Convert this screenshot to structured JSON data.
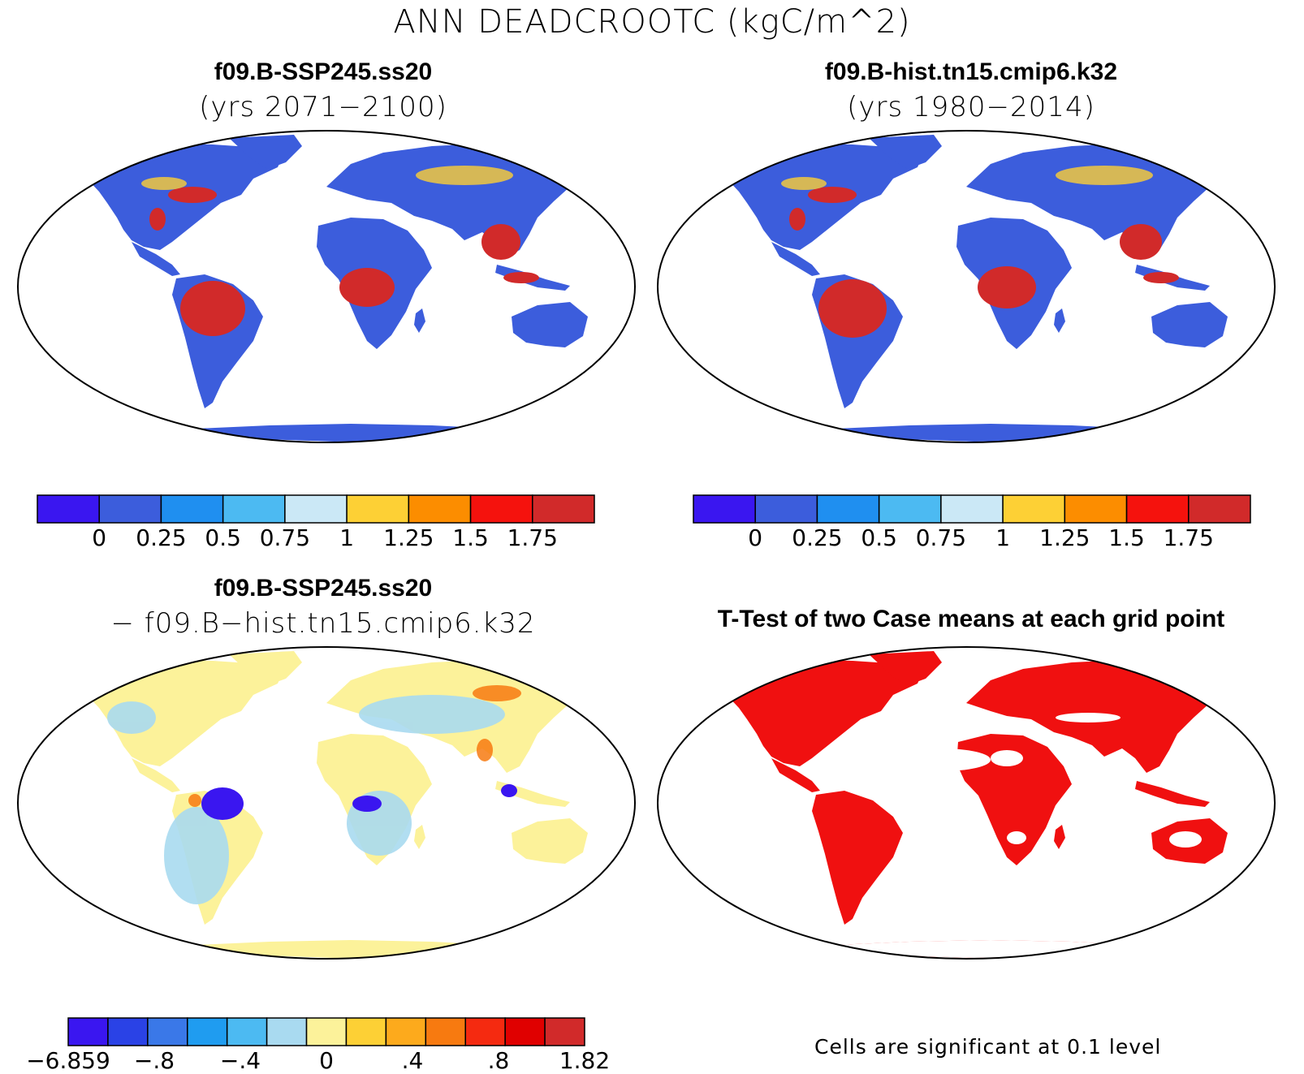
{
  "figure": {
    "title": "ANN DEADCROOTC (kgC/m^2)"
  },
  "panels": [
    {
      "title": "f09.B-SSP245.ss20",
      "subtitle": "(yrs 2071−2100)",
      "colorbar": {
        "labels": [
          "0",
          "0.25",
          "0.5",
          "0.75",
          "1",
          "1.25",
          "1.5",
          "1.75"
        ],
        "colors": [
          "#3a16f0",
          "#3c5ddc",
          "#1f8ff0",
          "#4cbaf2",
          "#cbe8f6",
          "#fdd035",
          "#fc8d00",
          "#f5120d",
          "#d12a2a"
        ]
      }
    },
    {
      "title": "f09.B-hist.tn15.cmip6.k32",
      "subtitle": "(yrs 1980−2014)",
      "colorbar": {
        "labels": [
          "0",
          "0.25",
          "0.5",
          "0.75",
          "1",
          "1.25",
          "1.5",
          "1.75"
        ],
        "colors": [
          "#3a16f0",
          "#3c5ddc",
          "#1f8ff0",
          "#4cbaf2",
          "#cbe8f6",
          "#fdd035",
          "#fc8d00",
          "#f5120d",
          "#d12a2a"
        ]
      }
    },
    {
      "title": "f09.B-SSP245.ss20",
      "subtitle": "− f09.B−hist.tn15.cmip6.k32",
      "colorbar": {
        "labels": [
          "−6.859",
          "−.8",
          "−.4",
          "0",
          ".4",
          ".8",
          "1.82"
        ],
        "colors": [
          "#3a16f0",
          "#2a42e6",
          "#3a78e8",
          "#1f9cf0",
          "#4cbaf2",
          "#a9daf0",
          "#fcf29a",
          "#fdd035",
          "#fdaa1c",
          "#f77a10",
          "#f52a10",
          "#e00000",
          "#d12a2a"
        ]
      }
    },
    {
      "title": "T-Test of two Case means at each grid point",
      "note": "Cells are significant at 0.1 level",
      "sig_color": "#f01010"
    }
  ]
}
